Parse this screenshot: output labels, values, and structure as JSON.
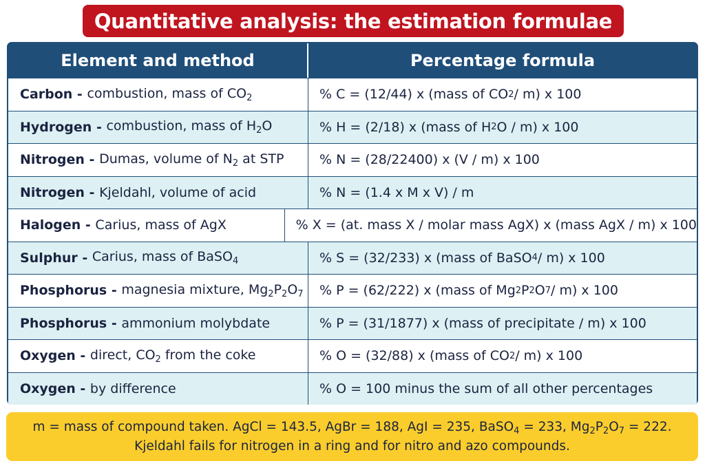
{
  "title": "Quantitative analysis: the estimation formulae",
  "table": {
    "headers": {
      "left": "Element and method",
      "right": "Percentage formula"
    },
    "rows": [
      {
        "element": "Carbon",
        "method": [
          {
            "t": "combustion, mass of CO"
          },
          {
            "s": "2"
          }
        ],
        "formula": [
          {
            "t": "% C = (12/44) x (mass of CO"
          },
          {
            "s": "2"
          },
          {
            "t": " / m) x 100"
          }
        ]
      },
      {
        "element": "Hydrogen",
        "method": [
          {
            "t": "combustion, mass of H"
          },
          {
            "s": "2"
          },
          {
            "t": "O"
          }
        ],
        "formula": [
          {
            "t": "% H = (2/18) x (mass of H"
          },
          {
            "s": "2"
          },
          {
            "t": "O / m) x 100"
          }
        ]
      },
      {
        "element": "Nitrogen",
        "method": [
          {
            "t": "Dumas, volume of N"
          },
          {
            "s": "2"
          },
          {
            "t": " at STP"
          }
        ],
        "formula": [
          {
            "t": "% N = (28/22400) x (V / m) x 100"
          }
        ]
      },
      {
        "element": "Nitrogen",
        "method": [
          {
            "t": "Kjeldahl, volume of acid"
          }
        ],
        "formula": [
          {
            "t": "% N = (1.4 x M x V) / m"
          }
        ]
      },
      {
        "element": "Halogen",
        "method": [
          {
            "t": "Carius, mass of AgX"
          }
        ],
        "formula": [
          {
            "t": "% X = (at. mass X / molar mass AgX) x (mass AgX / m) x 100"
          }
        ]
      },
      {
        "element": "Sulphur",
        "method": [
          {
            "t": "Carius, mass of BaSO"
          },
          {
            "s": "4"
          }
        ],
        "formula": [
          {
            "t": "% S = (32/233) x (mass of BaSO"
          },
          {
            "s": "4"
          },
          {
            "t": " / m) x 100"
          }
        ]
      },
      {
        "element": "Phosphorus",
        "method": [
          {
            "t": "magnesia mixture, Mg"
          },
          {
            "s": "2"
          },
          {
            "t": "P"
          },
          {
            "s": "2"
          },
          {
            "t": "O"
          },
          {
            "s": "7"
          }
        ],
        "formula": [
          {
            "t": "% P = (62/222) x (mass of Mg"
          },
          {
            "s": "2"
          },
          {
            "t": "P"
          },
          {
            "s": "2"
          },
          {
            "t": "O"
          },
          {
            "s": "7"
          },
          {
            "t": " / m) x 100"
          }
        ]
      },
      {
        "element": "Phosphorus",
        "method": [
          {
            "t": "ammonium molybdate"
          }
        ],
        "formula": [
          {
            "t": "% P = (31/1877) x (mass of precipitate / m) x 100"
          }
        ]
      },
      {
        "element": "Oxygen",
        "method": [
          {
            "t": "direct, CO"
          },
          {
            "s": "2"
          },
          {
            "t": " from the coke"
          }
        ],
        "formula": [
          {
            "t": "% O = (32/88) x (mass of CO"
          },
          {
            "s": "2"
          },
          {
            "t": " / m) x 100"
          }
        ]
      },
      {
        "element": "Oxygen",
        "method": [
          {
            "t": "by difference"
          }
        ],
        "formula": [
          {
            "t": "% O = 100 minus the sum of all other percentages"
          }
        ]
      }
    ]
  },
  "note": {
    "line1": [
      {
        "t": "m = mass of compound taken. AgCl = 143.5, AgBr = 188, AgI = 235, BaSO"
      },
      {
        "s": "4"
      },
      {
        "t": " = 233, Mg"
      },
      {
        "s": "2"
      },
      {
        "t": "P"
      },
      {
        "s": "2"
      },
      {
        "t": "O"
      },
      {
        "s": "7"
      },
      {
        "t": " = 222."
      }
    ],
    "line2": "Kjeldahl fails for nitrogen in a ring and for nitro and azo compounds."
  },
  "colors": {
    "title_bg": "#c0141f",
    "header_bg": "#1f4e79",
    "row_alt_bg": "#ddf0f3",
    "note_bg": "#fbcd2c"
  }
}
